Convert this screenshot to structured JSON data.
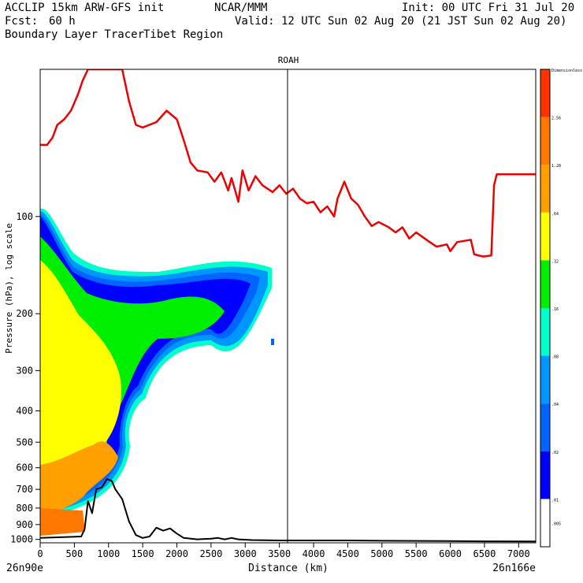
{
  "header": {
    "model": "ACCLIP 15km ARW-GFS init",
    "org": "NCAR/MMM",
    "init": "Init: 00 UTC Fri 31 Jul 20",
    "fcst_label": "Fcst:",
    "fcst_value": "60 h",
    "valid": "Valid: 12 UTC Sun 02 Aug 20 (21 JST Sun 02 Aug 20)",
    "product": "Boundary Layer Tracer",
    "region": "Tibet Region"
  },
  "chart_data": {
    "type": "contour-cross-section",
    "title": "ROAH",
    "xlabel": "Distance (km)",
    "ylabel": "Pressure (hPa), log scale",
    "x_ticks": [
      0,
      500,
      1000,
      1500,
      2000,
      2500,
      3000,
      3500,
      4000,
      4500,
      5000,
      5500,
      6000,
      6500,
      7000
    ],
    "x_range": [
      0,
      7250
    ],
    "y_ticks": [
      100,
      200,
      300,
      400,
      500,
      600,
      700,
      800,
      900,
      1000
    ],
    "y_range": [
      35,
      1025
    ],
    "y_scale": "log",
    "start_label": "26n90e",
    "end_label": "26n166e",
    "vertical_marker_km": 3600,
    "colorbar": {
      "levels": [
        "Dimensionless",
        "2.56",
        "1.28",
        ".64",
        ".32",
        ".16",
        ".08",
        ".04",
        ".02",
        ".01",
        ".005"
      ],
      "colors": [
        "#ff3200",
        "#ff7800",
        "#ffa000",
        "#ffff00",
        "#00ee00",
        "#00ffcc",
        "#0096ff",
        "#0064ff",
        "#0000ff",
        "#ffffff"
      ]
    },
    "tropopause": {
      "color": "#ee0000",
      "points": [
        [
          0,
          60
        ],
        [
          100,
          60
        ],
        [
          180,
          57
        ],
        [
          250,
          52
        ],
        [
          350,
          50
        ],
        [
          450,
          47
        ],
        [
          550,
          42
        ],
        [
          620,
          38
        ],
        [
          700,
          35
        ],
        [
          1200,
          35
        ],
        [
          1300,
          44
        ],
        [
          1400,
          52
        ],
        [
          1500,
          53
        ],
        [
          1700,
          51
        ],
        [
          1850,
          47
        ],
        [
          2000,
          50
        ],
        [
          2100,
          58
        ],
        [
          2200,
          68
        ],
        [
          2300,
          72
        ],
        [
          2450,
          73
        ],
        [
          2550,
          78
        ],
        [
          2650,
          73
        ],
        [
          2750,
          83
        ],
        [
          2800,
          76
        ],
        [
          2900,
          90
        ],
        [
          2960,
          72
        ],
        [
          3050,
          83
        ],
        [
          3150,
          75
        ],
        [
          3250,
          80
        ],
        [
          3400,
          84
        ],
        [
          3500,
          80
        ],
        [
          3600,
          85
        ],
        [
          3700,
          82
        ],
        [
          3800,
          88
        ],
        [
          3900,
          91
        ],
        [
          4000,
          90
        ],
        [
          4100,
          97
        ],
        [
          4200,
          93
        ],
        [
          4300,
          100
        ],
        [
          4350,
          88
        ],
        [
          4450,
          78
        ],
        [
          4550,
          88
        ],
        [
          4650,
          92
        ],
        [
          4750,
          100
        ],
        [
          4850,
          107
        ],
        [
          4950,
          104
        ],
        [
          5100,
          108
        ],
        [
          5200,
          112
        ],
        [
          5300,
          108
        ],
        [
          5400,
          117
        ],
        [
          5500,
          112
        ],
        [
          5700,
          120
        ],
        [
          5800,
          124
        ],
        [
          5950,
          122
        ],
        [
          6000,
          128
        ],
        [
          6100,
          120
        ],
        [
          6300,
          118
        ],
        [
          6350,
          131
        ],
        [
          6480,
          133
        ],
        [
          6600,
          132
        ],
        [
          6640,
          80
        ],
        [
          6680,
          74
        ],
        [
          6800,
          74
        ],
        [
          7250,
          74
        ]
      ]
    },
    "terrain": {
      "color": "#000000",
      "points": [
        [
          0,
          990
        ],
        [
          300,
          985
        ],
        [
          600,
          980
        ],
        [
          650,
          930
        ],
        [
          700,
          760
        ],
        [
          760,
          830
        ],
        [
          820,
          700
        ],
        [
          900,
          690
        ],
        [
          980,
          650
        ],
        [
          1050,
          660
        ],
        [
          1100,
          700
        ],
        [
          1200,
          750
        ],
        [
          1300,
          880
        ],
        [
          1400,
          970
        ],
        [
          1500,
          990
        ],
        [
          1600,
          980
        ],
        [
          1700,
          920
        ],
        [
          1800,
          940
        ],
        [
          1900,
          925
        ],
        [
          2000,
          960
        ],
        [
          2100,
          990
        ],
        [
          2300,
          1000
        ],
        [
          2500,
          995
        ],
        [
          2600,
          990
        ],
        [
          2700,
          1000
        ],
        [
          2800,
          990
        ],
        [
          2900,
          1000
        ],
        [
          3100,
          1005
        ],
        [
          3500,
          1008
        ],
        [
          4000,
          1008
        ],
        [
          4500,
          1008
        ],
        [
          5000,
          1010
        ],
        [
          6000,
          1012
        ],
        [
          6500,
          1014
        ],
        [
          7250,
          1015
        ]
      ]
    }
  }
}
